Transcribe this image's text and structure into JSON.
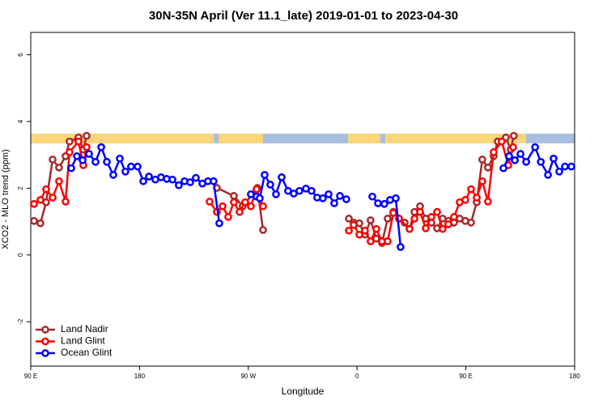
{
  "chart_data": {
    "type": "line",
    "title": "30N-35N April (Ver 11.1_late)   2019-01-01 to 2023-04-30",
    "x_label": "Longitude",
    "y_label": "XCO2 - MLO trend (ppm)",
    "xlim": [
      90,
      540
    ],
    "ylim": [
      -3.33,
      6.67
    ],
    "xticks": [
      {
        "value": 90,
        "label": "90 E"
      },
      180,
      {
        "value": 270,
        "label": "90 W"
      },
      {
        "value": 360,
        "label": "0"
      },
      {
        "value": 450,
        "label": "90 E"
      },
      {
        "value": 540,
        "label": "180"
      }
    ],
    "yticks": [
      -2,
      0,
      2,
      4,
      6
    ],
    "legend": "bottom-left",
    "series": [
      {
        "name": "Land Nadir",
        "color": "#a52a2a",
        "x": [
          92.7,
          98.0,
          102.7,
          108.1,
          113.4,
          118.8,
          122.1,
          129.5,
          133.5,
          136.2,
          null,
          244.0,
          258.1,
          265.4,
          277.5,
          282.2,
          null,
          353.2,
          357.2,
          361.9,
          366.5,
          371.2,
          375.9,
          380.6,
          385.3,
          390.0,
          394.7,
          399.4,
          403.4,
          407.5,
          412.1,
          416.8,
          421.5,
          426.2,
          430.8,
          435.5,
          440.2,
          444.9,
          449.6,
          454.3,
          459.0,
          463.6,
          468.3,
          473.0,
          476.4,
          483.1,
          487.1,
          489.7
        ],
        "values": [
          1.02,
          0.95,
          1.58,
          2.86,
          2.62,
          2.96,
          3.4,
          3.52,
          3.16,
          3.57,
          null,
          2.01,
          1.77,
          1.46,
          2.01,
          0.75,
          null,
          1.09,
          0.97,
          0.95,
          0.61,
          1.04,
          0.49,
          0.36,
          1.09,
          1.29,
          1.09,
          0.97,
          0.78,
          1.29,
          1.46,
          1.09,
          0.97,
          0.8,
          1.09,
          1.02,
          0.97,
          1.09,
          1.02,
          0.97,
          1.58,
          2.86,
          2.62,
          2.96,
          3.4,
          3.52,
          3.16,
          3.57
        ]
      },
      {
        "name": "Land Glint",
        "color": "#ff0000",
        "x": [
          92.7,
          98.0,
          102.7,
          108.1,
          113.4,
          118.8,
          122.1,
          129.5,
          133.5,
          136.2,
          null,
          238.0,
          244.0,
          248.7,
          253.4,
          258.1,
          262.8,
          267.4,
          272.1,
          276.8,
          282.2,
          null,
          353.2,
          357.2,
          361.9,
          366.5,
          371.2,
          375.9,
          380.6,
          385.3,
          390.0,
          394.7,
          403.4,
          407.5,
          412.1,
          416.8,
          421.5,
          426.2,
          430.8,
          435.5,
          440.2,
          444.9,
          449.6,
          454.3,
          459.0,
          463.6,
          468.3,
          473.0,
          479.7,
          485.1,
          489.1
        ],
        "values": [
          1.53,
          1.65,
          1.97,
          1.72,
          2.21,
          1.6,
          3.08,
          3.4,
          2.69,
          3.23,
          null,
          1.6,
          1.29,
          1.46,
          1.14,
          1.58,
          1.29,
          1.58,
          1.46,
          1.97,
          1.46,
          null,
          0.73,
          0.9,
          0.61,
          0.73,
          0.41,
          0.78,
          0.41,
          0.41,
          1.26,
          1.09,
          0.78,
          1.09,
          1.29,
          0.8,
          1.14,
          1.29,
          0.78,
          0.92,
          1.14,
          1.58,
          1.65,
          1.97,
          1.72,
          2.21,
          1.6,
          3.08,
          3.4,
          2.69,
          3.23
        ]
      },
      {
        "name": "Ocean Glint",
        "color": "#0000ff",
        "x": [
          123.5,
          128.2,
          132.9,
          138.2,
          143.6,
          148.3,
          153.0,
          158.3,
          163.7,
          168.3,
          173.0,
          178.4,
          183.1,
          187.8,
          193.1,
          197.8,
          202.5,
          207.2,
          212.5,
          217.2,
          221.9,
          226.6,
          232.0,
          236.6,
          241.3,
          246.0,
          null,
          272.1,
          276.8,
          279.5,
          283.5,
          288.2,
          292.9,
          297.6,
          302.9,
          307.6,
          312.3,
          317.7,
          322.3,
          327.0,
          331.7,
          336.4,
          341.1,
          345.8,
          351.1,
          null,
          372.6,
          377.3,
          382.6,
          387.3,
          392.0,
          396.0,
          null,
          481.1,
          485.8,
          490.5,
          495.2,
          499.9,
          507.3,
          512.0,
          518.0,
          522.6,
          527.3,
          532.0,
          537.3
        ],
        "values": [
          2.6,
          2.96,
          2.84,
          3.03,
          2.79,
          3.23,
          2.79,
          2.4,
          2.89,
          2.5,
          2.65,
          2.65,
          2.21,
          2.35,
          2.26,
          2.33,
          2.28,
          2.26,
          2.09,
          2.21,
          2.18,
          2.31,
          2.14,
          2.21,
          2.21,
          0.95,
          null,
          1.82,
          1.75,
          1.7,
          2.4,
          2.11,
          1.82,
          2.33,
          1.92,
          1.84,
          1.92,
          1.99,
          1.92,
          1.72,
          1.7,
          1.82,
          1.55,
          1.77,
          1.67,
          null,
          1.75,
          1.55,
          1.53,
          1.65,
          1.7,
          0.24,
          null,
          2.6,
          2.96,
          2.84,
          3.03,
          2.79,
          3.23,
          2.79,
          2.4,
          2.89,
          2.5,
          2.65,
          2.65
        ]
      }
    ]
  }
}
